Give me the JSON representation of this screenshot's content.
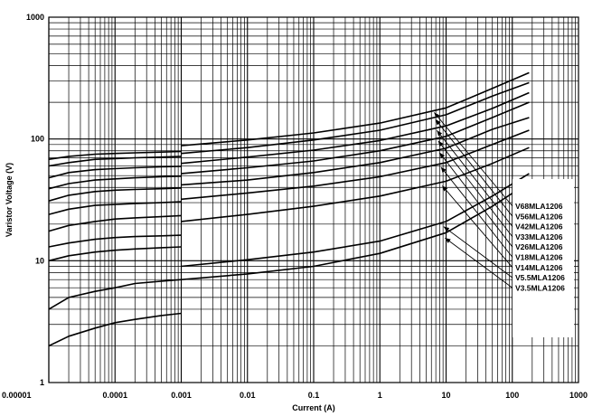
{
  "chart_data": {
    "type": "line",
    "title": "",
    "xlabel": "Current (A)",
    "ylabel": "Varistor Voltage (V)",
    "x_scale": "log",
    "y_scale": "log",
    "xlim": [
      1e-05,
      1000
    ],
    "ylim": [
      1,
      1000
    ],
    "grid": true,
    "x_ticks": [
      "0.00001",
      "0.0001",
      "0.001",
      "0.01",
      "0.1",
      "1",
      "10",
      "100",
      "1000"
    ],
    "y_ticks": [
      "1",
      "10",
      "100",
      "1000"
    ],
    "series": [
      {
        "name": "V68MLA1206",
        "low": {
          "x": [
            1e-05,
            2e-05,
            5e-05,
            0.0001,
            0.0002,
            0.0005,
            0.001
          ],
          "y": [
            68,
            72,
            75,
            76,
            77,
            78,
            79
          ]
        },
        "high": {
          "x": [
            0.001,
            0.01,
            0.1,
            1,
            10,
            50,
            180
          ],
          "y": [
            88,
            98,
            112,
            135,
            180,
            260,
            350
          ]
        }
      },
      {
        "name": "V56MLA1206",
        "low": {
          "x": [
            1e-05,
            2e-05,
            5e-05,
            0.0001,
            0.0002,
            0.0005,
            0.001
          ],
          "y": [
            60,
            64,
            68,
            69,
            70,
            71,
            72
          ]
        },
        "high": {
          "x": [
            0.001,
            0.01,
            0.1,
            1,
            10,
            50,
            180
          ],
          "y": [
            76,
            85,
            98,
            118,
            158,
            225,
            290
          ]
        }
      },
      {
        "name": "V42MLA1206",
        "low": {
          "x": [
            1e-05,
            2e-05,
            5e-05,
            0.0001,
            0.0002,
            0.0005,
            0.001
          ],
          "y": [
            48,
            53,
            56,
            57,
            58,
            59,
            59.5
          ]
        },
        "high": {
          "x": [
            0.001,
            0.01,
            0.1,
            1,
            10,
            50,
            180
          ],
          "y": [
            63,
            71,
            81,
            97,
            128,
            178,
            240
          ]
        }
      },
      {
        "name": "V33MLA1206",
        "low": {
          "x": [
            1e-05,
            2e-05,
            5e-05,
            0.0001,
            0.0002,
            0.0005,
            0.001
          ],
          "y": [
            39,
            43,
            46,
            47,
            48,
            49,
            49.5
          ]
        },
        "high": {
          "x": [
            0.001,
            0.01,
            0.1,
            1,
            10,
            50,
            180
          ],
          "y": [
            52,
            58,
            66,
            80,
            105,
            150,
            200
          ]
        }
      },
      {
        "name": "V26MLA1206",
        "low": {
          "x": [
            1e-05,
            2e-05,
            5e-05,
            0.0001,
            0.0002,
            0.0005,
            0.001
          ],
          "y": [
            31,
            34.5,
            37,
            38,
            38.5,
            39,
            39.5
          ]
        },
        "high": {
          "x": [
            0.001,
            0.01,
            0.1,
            1,
            10,
            50,
            180
          ],
          "y": [
            42,
            46,
            53,
            64,
            84,
            120,
            150
          ]
        }
      },
      {
        "name": "V18MLA1206",
        "low": {
          "x": [
            1e-05,
            2e-05,
            5e-05,
            0.0001,
            0.0002,
            0.0005,
            0.001
          ],
          "y": [
            24,
            26.5,
            28.5,
            29,
            29.5,
            30,
            30.5
          ]
        },
        "high": {
          "x": [
            0.001,
            0.01,
            0.1,
            1,
            10,
            50,
            180
          ],
          "y": [
            32,
            36,
            41,
            49,
            64,
            90,
            118
          ]
        }
      },
      {
        "name": "V14MLA1206",
        "low": {
          "x": [
            1e-05,
            2e-05,
            5e-05,
            0.0001,
            0.0002,
            0.0005,
            0.001
          ],
          "y": [
            17.5,
            19.5,
            21,
            22,
            22.5,
            23,
            23.5
          ]
        },
        "high": {
          "x": [
            0.001,
            0.01,
            0.1,
            1,
            10,
            50,
            180
          ],
          "y": [
            21,
            24,
            28,
            34,
            45,
            63,
            85
          ]
        }
      },
      {
        "name": "V5.5MLA1206",
        "low": {
          "x": [
            1e-05,
            2e-05,
            5e-05,
            0.0001,
            0.0002,
            0.0005,
            0.001
          ],
          "y": [
            13,
            14,
            15,
            15.5,
            15.8,
            16,
            16.2
          ]
        },
        "high": {
          "x": [
            0.001,
            0.01,
            0.1,
            1,
            10,
            50,
            180
          ],
          "y": [
            9,
            10.2,
            11.8,
            14.5,
            21,
            34,
            52
          ]
        }
      },
      {
        "name": "V3.5MLA1206",
        "low": {
          "x": [
            1e-05,
            2e-05,
            5e-05,
            0.0001,
            0.0002,
            0.0005,
            0.001
          ],
          "y": [
            10,
            11,
            11.8,
            12.2,
            12.5,
            12.8,
            13
          ]
        },
        "high": {
          "x": [
            0.001,
            0.01,
            0.1,
            1,
            10,
            50,
            180
          ],
          "y": [
            7,
            7.8,
            9,
            11.5,
            17,
            28,
            44
          ]
        }
      },
      {
        "name": "",
        "low": {
          "x": [
            1e-05,
            2e-05,
            5e-05,
            0.0001,
            0.0002,
            0.0005,
            0.001
          ],
          "y": [
            4,
            5,
            5.6,
            6,
            6.5,
            6.8,
            7
          ]
        },
        "high": {
          "x": [
            0.001
          ],
          "y": [
            7
          ]
        }
      },
      {
        "name": "",
        "low": {
          "x": [
            1e-05,
            2e-05,
            5e-05,
            0.0001,
            0.0002,
            0.0005,
            0.001
          ],
          "y": [
            2,
            2.4,
            2.8,
            3.1,
            3.3,
            3.55,
            3.7
          ]
        },
        "high": {
          "x": [
            0.001
          ],
          "y": [
            3.7
          ]
        }
      }
    ],
    "labeled_series": [
      "V68MLA1206",
      "V56MLA1206",
      "V42MLA1206",
      "V33MLA1206",
      "V26MLA1206",
      "V18MLA1206",
      "V14MLA1206",
      "V5.5MLA1206",
      "V3.5MLA1206"
    ],
    "label_arrow_x": 7.5
  }
}
